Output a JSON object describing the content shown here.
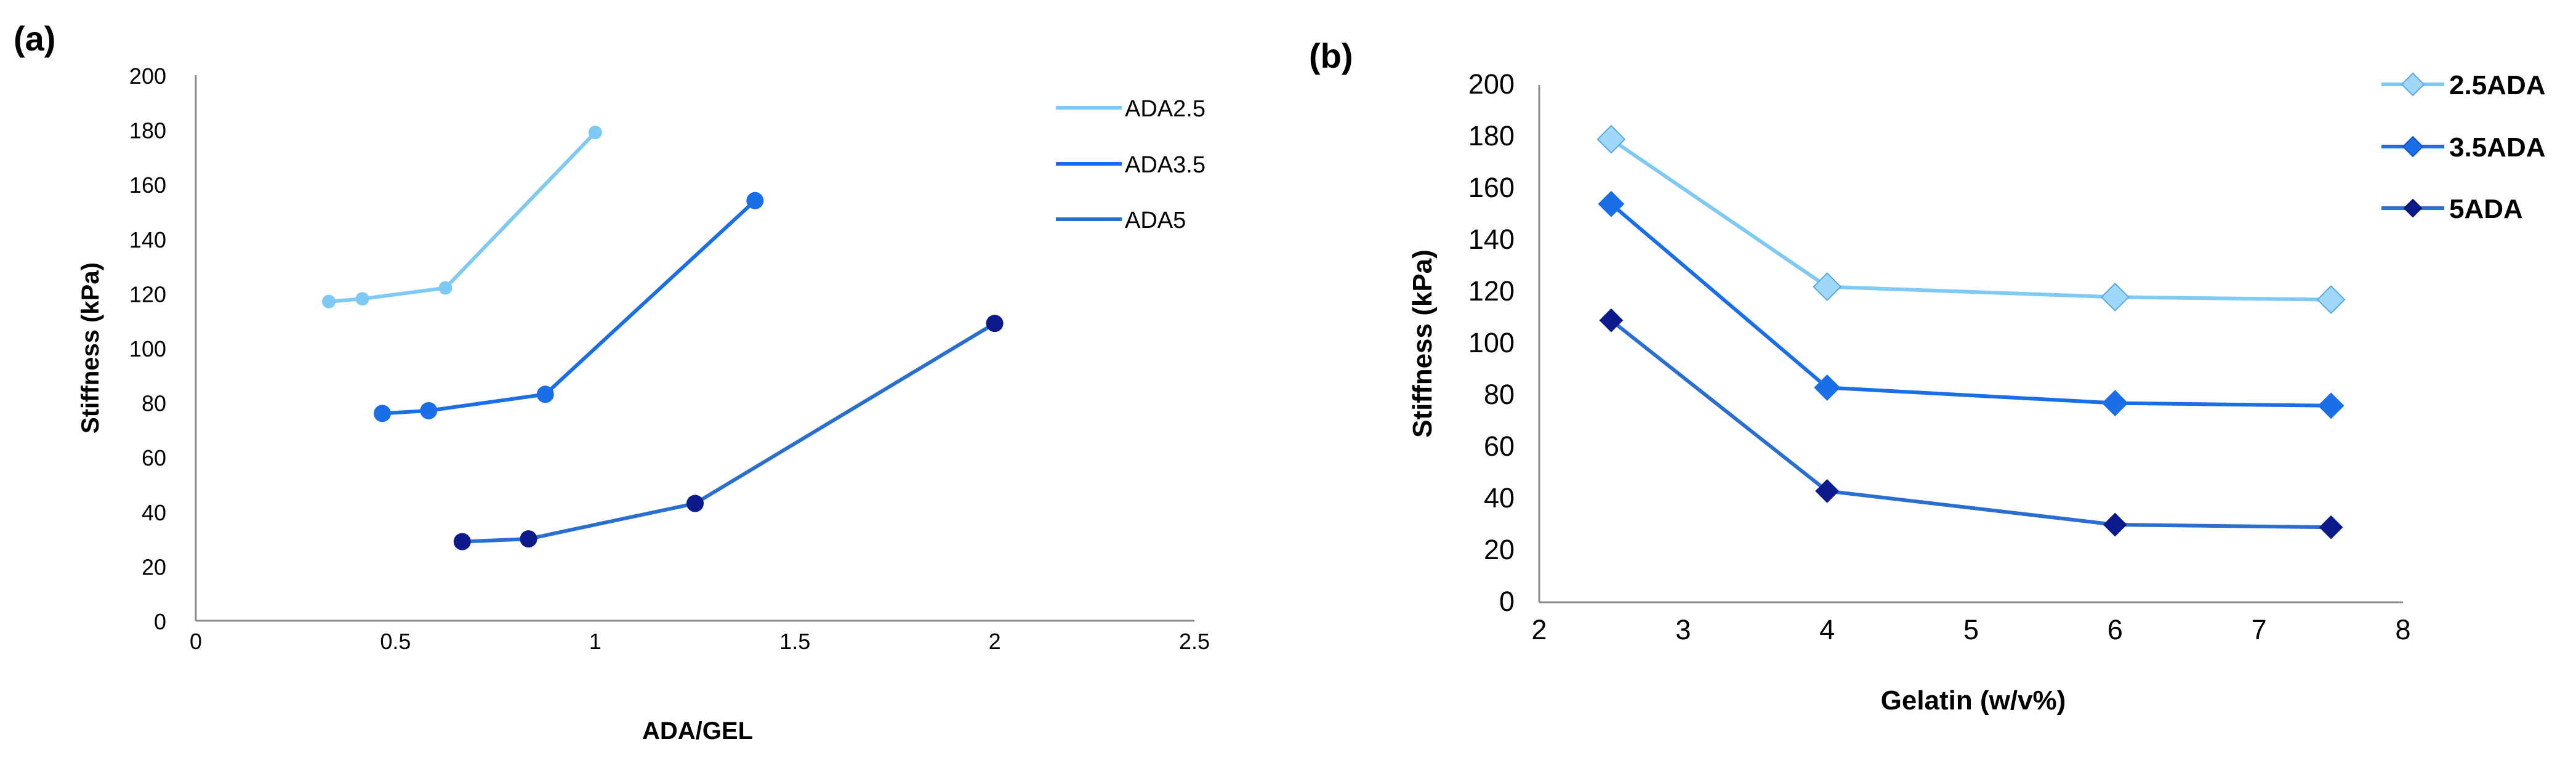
{
  "chart_data": [
    {
      "panel_label": "(a)",
      "type": "line",
      "xlabel": "ADA/GEL",
      "ylabel": "Stiffness (kPa)",
      "xlim": [
        0,
        2.5
      ],
      "ylim": [
        0,
        200
      ],
      "x_ticks": [
        0,
        0.5,
        1,
        1.5,
        2,
        2.5
      ],
      "x_tick_labels": [
        "0",
        "0.5",
        "1",
        "1.5",
        "2",
        "2.5"
      ],
      "y_ticks": [
        0,
        20,
        40,
        60,
        80,
        100,
        120,
        140,
        160,
        180,
        200
      ],
      "y_tick_labels": [
        "0",
        "20",
        "40",
        "60",
        "80",
        "100",
        "120",
        "140",
        "160",
        "180",
        "200"
      ],
      "legend_position": "top-right",
      "series": [
        {
          "name": "ADA2.5",
          "color": "#7fc9f5",
          "marker": "circle",
          "x": [
            0.333,
            0.417,
            0.625,
            1.0
          ],
          "y": [
            117,
            118,
            122,
            179
          ]
        },
        {
          "name": "ADA3.5",
          "color": "#1a6fe8",
          "marker": "circle",
          "x": [
            0.467,
            0.583,
            0.875,
            1.4
          ],
          "y": [
            76,
            77,
            83,
            154
          ]
        },
        {
          "name": "ADA5",
          "color": "#0d1a8c",
          "line_color": "#2a6fd0",
          "marker": "circle",
          "x": [
            0.667,
            0.833,
            1.25,
            2.0
          ],
          "y": [
            29,
            30,
            43,
            109
          ]
        }
      ]
    },
    {
      "panel_label": "(b)",
      "type": "line",
      "xlabel": "Gelatin (w/v%)",
      "ylabel": "Stiffness (kPa)",
      "xlim": [
        2,
        8
      ],
      "ylim": [
        0,
        200
      ],
      "x_ticks": [
        2,
        3,
        4,
        5,
        6,
        7,
        8
      ],
      "x_tick_labels": [
        "2",
        "3",
        "4",
        "5",
        "6",
        "7",
        "8"
      ],
      "y_ticks": [
        0,
        20,
        40,
        60,
        80,
        100,
        120,
        140,
        160,
        180,
        200
      ],
      "y_tick_labels": [
        "0",
        "20",
        "40",
        "60",
        "80",
        "100",
        "120",
        "140",
        "160",
        "180",
        "200"
      ],
      "grid": false,
      "legend_position": "top-right",
      "series": [
        {
          "name": "2.5ADA",
          "color": "#7fc9f5",
          "marker": "diamond",
          "x": [
            2.5,
            4,
            6,
            7.5
          ],
          "y": [
            179,
            122,
            118,
            117
          ]
        },
        {
          "name": "3.5ADA",
          "color": "#1a6fe8",
          "marker": "diamond",
          "x": [
            2.5,
            4,
            6,
            7.5
          ],
          "y": [
            154,
            83,
            77,
            76
          ]
        },
        {
          "name": "5ADA",
          "color": "#0d1a8c",
          "line_color": "#2a6fd0",
          "marker": "diamond",
          "x": [
            2.5,
            4,
            6,
            7.5
          ],
          "y": [
            109,
            43,
            30,
            29
          ]
        }
      ]
    }
  ]
}
